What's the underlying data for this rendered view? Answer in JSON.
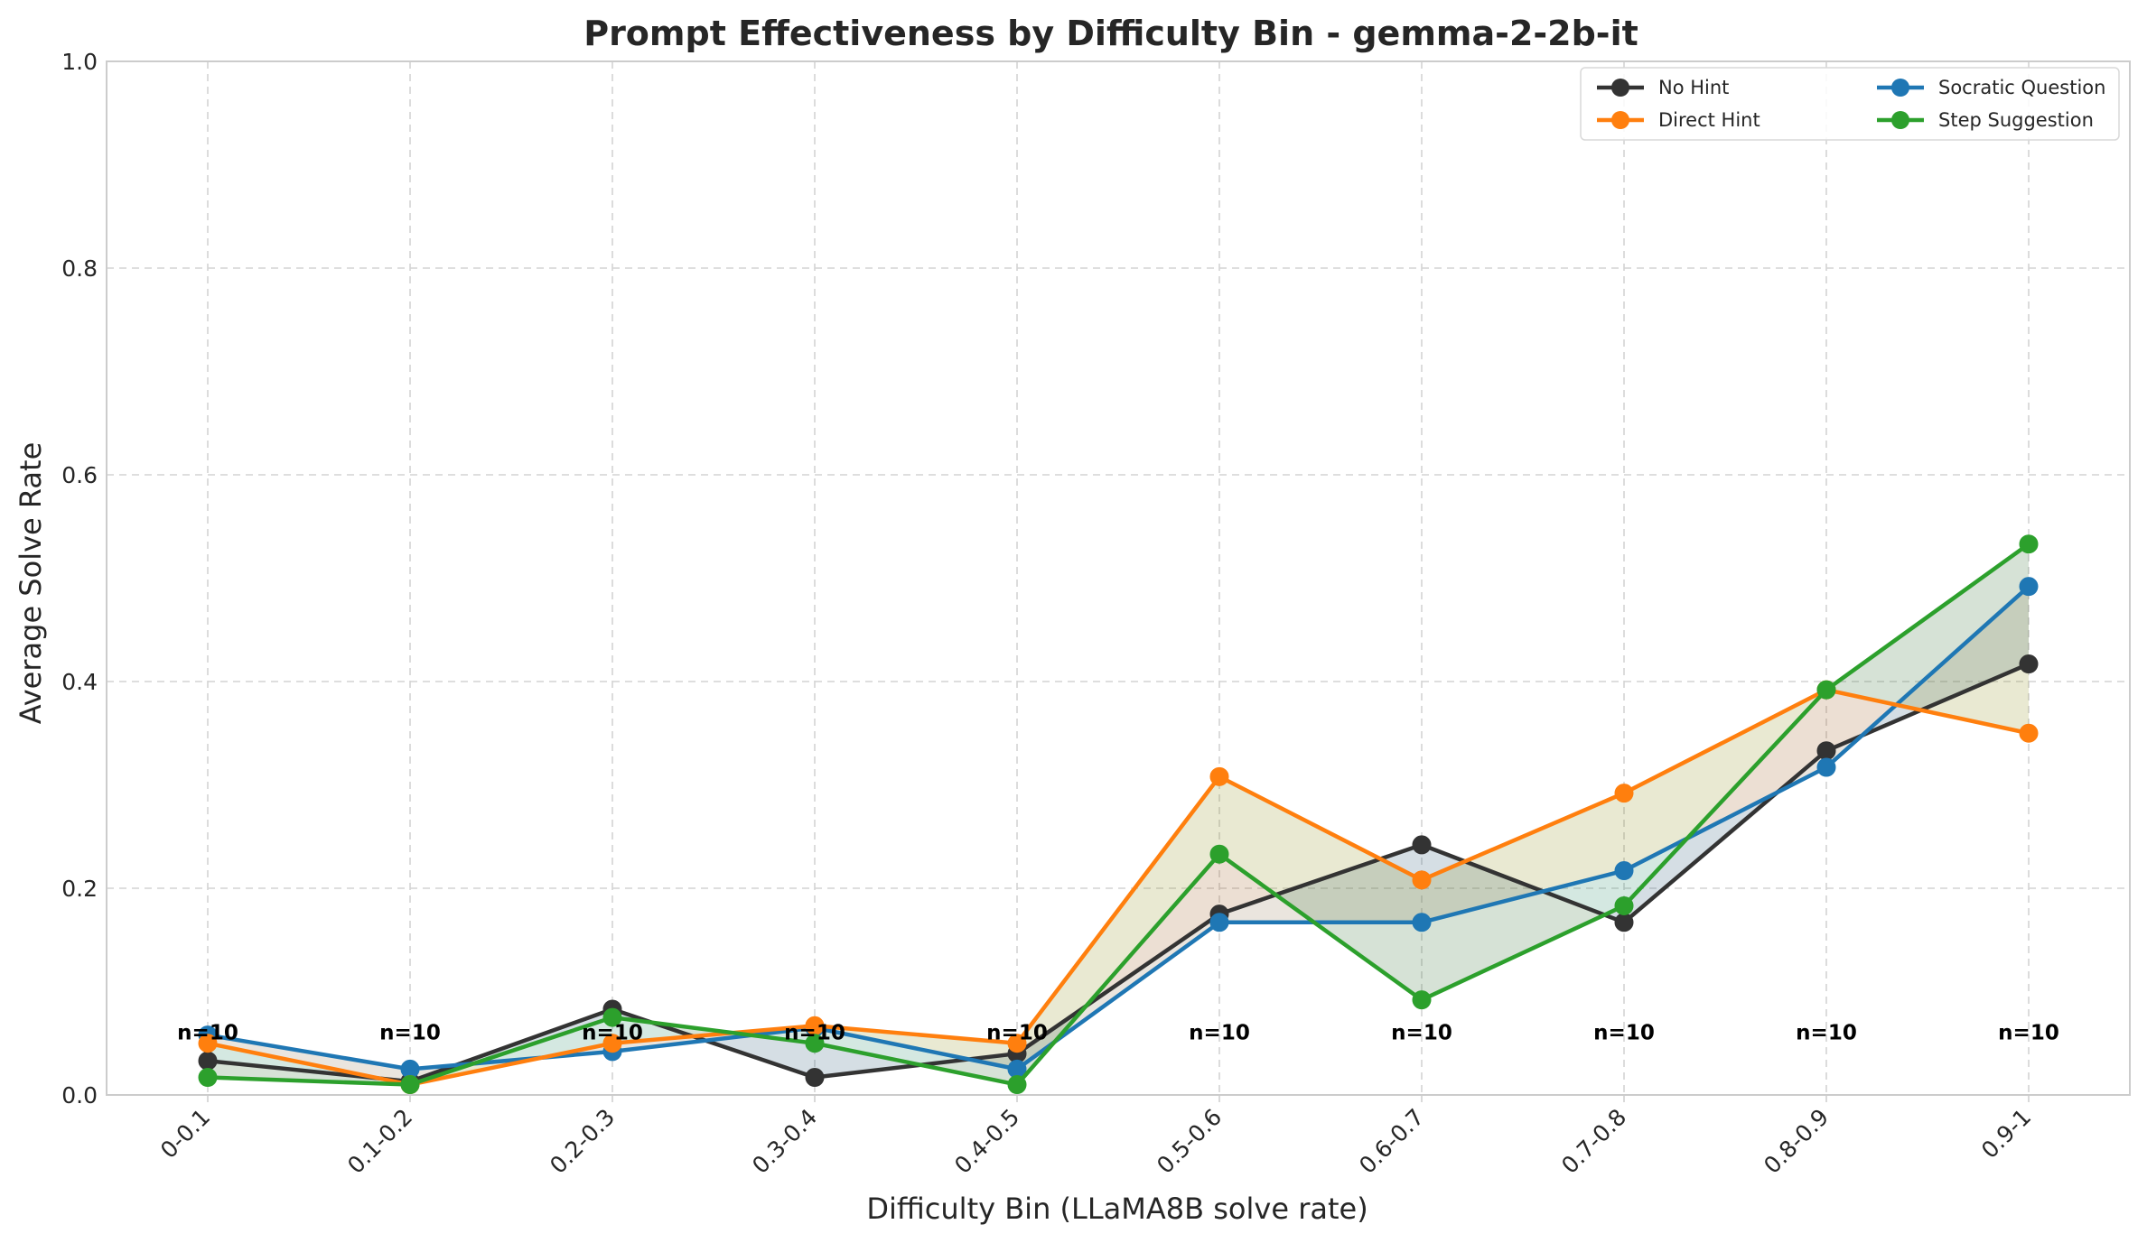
{
  "chart_data": {
    "type": "line",
    "title": "Prompt Effectiveness by Difficulty Bin - gemma-2-2b-it",
    "xlabel": "Difficulty Bin (LLaMA8B solve rate)",
    "ylabel": "Average Solve Rate",
    "ylim": [
      0,
      1.0
    ],
    "yticks": [
      "0.0",
      "0.2",
      "0.4",
      "0.6",
      "0.8",
      "1.0"
    ],
    "categories": [
      "0-0.1",
      "0.1-0.2",
      "0.2-0.3",
      "0.3-0.4",
      "0.4-0.5",
      "0.5-0.6",
      "0.6-0.7",
      "0.7-0.8",
      "0.8-0.9",
      "0.9-1"
    ],
    "sample_labels": [
      "n=10",
      "n=10",
      "n=10",
      "n=10",
      "n=10",
      "n=10",
      "n=10",
      "n=10",
      "n=10",
      "n=10"
    ],
    "grid": true,
    "legend_position": "top-right",
    "series": [
      {
        "name": "No Hint",
        "color": "#333333",
        "values": [
          0.033,
          0.013,
          0.083,
          0.017,
          0.04,
          0.175,
          0.242,
          0.167,
          0.333,
          0.417
        ]
      },
      {
        "name": "Socratic Question",
        "color": "#1f77b4",
        "values": [
          0.058,
          0.025,
          0.042,
          0.065,
          0.025,
          0.167,
          0.167,
          0.217,
          0.317,
          0.492
        ]
      },
      {
        "name": "Direct Hint",
        "color": "#ff7f0e",
        "values": [
          0.05,
          0.01,
          0.05,
          0.067,
          0.05,
          0.308,
          0.208,
          0.292,
          0.392,
          0.35
        ]
      },
      {
        "name": "Step Suggestion",
        "color": "#2ca02c",
        "values": [
          0.017,
          0.01,
          0.075,
          0.05,
          0.01,
          0.233,
          0.092,
          0.183,
          0.392,
          0.533
        ]
      }
    ]
  }
}
